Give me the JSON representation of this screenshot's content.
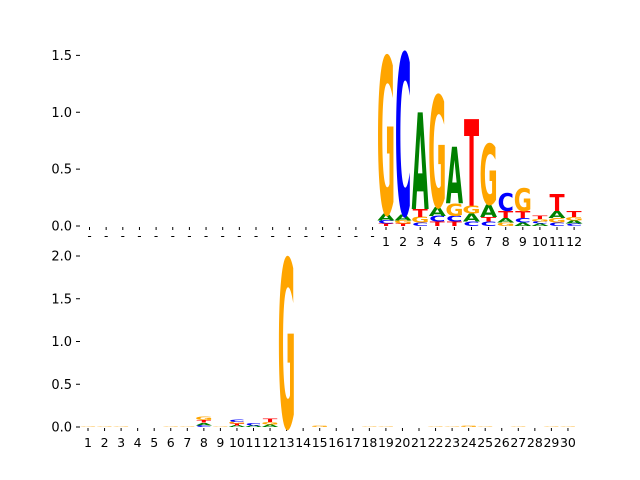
{
  "chart_data": [
    {
      "type": "sequence-logo",
      "ylim": [
        0,
        1.6
      ],
      "yticks": [
        "0.0",
        "0.5",
        "1.0",
        "1.5"
      ],
      "ytick_values": [
        0,
        0.5,
        1.0,
        1.5
      ],
      "num_blank_positions": 18,
      "blank_label": "-",
      "position_labels": [
        "1",
        "2",
        "3",
        "4",
        "5",
        "6",
        "7",
        "8",
        "9",
        "10",
        "11",
        "12"
      ],
      "colors": {
        "A": "#008000",
        "C": "#0000ff",
        "G": "#ffa500",
        "T": "#ff0000"
      },
      "positions": [
        {
          "label": "1",
          "letters": [
            {
              "base": "T",
              "height": 0.02
            },
            {
              "base": "C",
              "height": 0.03
            },
            {
              "base": "A",
              "height": 0.06
            },
            {
              "base": "G",
              "height": 1.38
            }
          ]
        },
        {
          "label": "2",
          "letters": [
            {
              "base": "T",
              "height": 0.02
            },
            {
              "base": "G",
              "height": 0.03
            },
            {
              "base": "A",
              "height": 0.05
            },
            {
              "base": "C",
              "height": 1.42
            }
          ]
        },
        {
          "label": "3",
          "letters": [
            {
              "base": "C",
              "height": 0.03
            },
            {
              "base": "G",
              "height": 0.05
            },
            {
              "base": "T",
              "height": 0.07
            },
            {
              "base": "A",
              "height": 0.85
            }
          ]
        },
        {
          "label": "4",
          "letters": [
            {
              "base": "T",
              "height": 0.04
            },
            {
              "base": "C",
              "height": 0.05
            },
            {
              "base": "A",
              "height": 0.08
            },
            {
              "base": "G",
              "height": 0.98
            }
          ]
        },
        {
          "label": "5",
          "letters": [
            {
              "base": "T",
              "height": 0.04
            },
            {
              "base": "C",
              "height": 0.05
            },
            {
              "base": "G",
              "height": 0.11
            },
            {
              "base": "A",
              "height": 0.5
            }
          ]
        },
        {
          "label": "6",
          "letters": [
            {
              "base": "C",
              "height": 0.04
            },
            {
              "base": "A",
              "height": 0.07
            },
            {
              "base": "G",
              "height": 0.07
            },
            {
              "base": "T",
              "height": 0.76
            }
          ]
        },
        {
          "label": "7",
          "letters": [
            {
              "base": "C",
              "height": 0.04
            },
            {
              "base": "T",
              "height": 0.04
            },
            {
              "base": "A",
              "height": 0.11
            },
            {
              "base": "G",
              "height": 0.53
            }
          ]
        },
        {
          "label": "8",
          "letters": [
            {
              "base": "G",
              "height": 0.03
            },
            {
              "base": "A",
              "height": 0.04
            },
            {
              "base": "T",
              "height": 0.06
            },
            {
              "base": "C",
              "height": 0.16
            }
          ]
        },
        {
          "label": "9",
          "letters": [
            {
              "base": "A",
              "height": 0.03
            },
            {
              "base": "C",
              "height": 0.04
            },
            {
              "base": "T",
              "height": 0.06
            },
            {
              "base": "G",
              "height": 0.2
            }
          ]
        },
        {
          "label": "10",
          "letters": [
            {
              "base": "A",
              "height": 0.02
            },
            {
              "base": "C",
              "height": 0.02
            },
            {
              "base": "G",
              "height": 0.02
            },
            {
              "base": "T",
              "height": 0.03
            }
          ]
        },
        {
          "label": "11",
          "letters": [
            {
              "base": "C",
              "height": 0.03
            },
            {
              "base": "G",
              "height": 0.04
            },
            {
              "base": "A",
              "height": 0.06
            },
            {
              "base": "T",
              "height": 0.15
            }
          ]
        },
        {
          "label": "12",
          "letters": [
            {
              "base": "C",
              "height": 0.02
            },
            {
              "base": "A",
              "height": 0.03
            },
            {
              "base": "G",
              "height": 0.03
            },
            {
              "base": "T",
              "height": 0.05
            }
          ]
        }
      ]
    },
    {
      "type": "sequence-logo",
      "ylim": [
        0,
        2.0
      ],
      "yticks": [
        "0.0",
        "0.5",
        "1.0",
        "1.5",
        "2.0"
      ],
      "ytick_values": [
        0,
        0.5,
        1.0,
        1.5,
        2.0
      ],
      "position_labels": [
        "1",
        "2",
        "3",
        "4",
        "5",
        "6",
        "7",
        "8",
        "9",
        "10",
        "11",
        "12",
        "13",
        "14",
        "15",
        "16",
        "17",
        "18",
        "19",
        "20",
        "21",
        "22",
        "23",
        "24",
        "25",
        "26",
        "27",
        "28",
        "29",
        "30"
      ],
      "colors": {
        "A": "#008000",
        "C": "#0000ff",
        "G": "#ffa500",
        "T": "#ff0000"
      },
      "positions": [
        {
          "label": "1",
          "letters": [
            {
              "base": "G",
              "height": 0.01
            }
          ]
        },
        {
          "label": "2",
          "letters": [
            {
              "base": "G",
              "height": 0.01
            }
          ]
        },
        {
          "label": "3",
          "letters": [
            {
              "base": "G",
              "height": 0.005
            }
          ]
        },
        {
          "label": "4",
          "letters": []
        },
        {
          "label": "5",
          "letters": []
        },
        {
          "label": "6",
          "letters": [
            {
              "base": "G",
              "height": 0.01
            }
          ]
        },
        {
          "label": "7",
          "letters": [
            {
              "base": "G",
              "height": 0.01
            }
          ]
        },
        {
          "label": "8",
          "letters": [
            {
              "base": "C",
              "height": 0.02
            },
            {
              "base": "A",
              "height": 0.03
            },
            {
              "base": "T",
              "height": 0.03
            },
            {
              "base": "G",
              "height": 0.04
            }
          ]
        },
        {
          "label": "9",
          "letters": [
            {
              "base": "G",
              "height": 0.01
            }
          ]
        },
        {
          "label": "10",
          "letters": [
            {
              "base": "A",
              "height": 0.02
            },
            {
              "base": "T",
              "height": 0.02
            },
            {
              "base": "G",
              "height": 0.02
            },
            {
              "base": "C",
              "height": 0.03
            }
          ]
        },
        {
          "label": "11",
          "letters": [
            {
              "base": "A",
              "height": 0.02
            },
            {
              "base": "C",
              "height": 0.03
            }
          ]
        },
        {
          "label": "12",
          "letters": [
            {
              "base": "A",
              "height": 0.03
            },
            {
              "base": "G",
              "height": 0.03
            },
            {
              "base": "T",
              "height": 0.04
            }
          ]
        },
        {
          "label": "13",
          "letters": [
            {
              "base": "G",
              "height": 1.97
            }
          ]
        },
        {
          "label": "14",
          "letters": []
        },
        {
          "label": "15",
          "letters": [
            {
              "base": "G",
              "height": 0.015
            }
          ]
        },
        {
          "label": "16",
          "letters": []
        },
        {
          "label": "17",
          "letters": []
        },
        {
          "label": "18",
          "letters": [
            {
              "base": "G",
              "height": 0.01
            }
          ]
        },
        {
          "label": "19",
          "letters": [
            {
              "base": "G",
              "height": 0.01
            }
          ]
        },
        {
          "label": "20",
          "letters": []
        },
        {
          "label": "21",
          "letters": []
        },
        {
          "label": "22",
          "letters": [
            {
              "base": "G",
              "height": 0.01
            }
          ]
        },
        {
          "label": "23",
          "letters": [
            {
              "base": "G",
              "height": 0.01
            }
          ]
        },
        {
          "label": "24",
          "letters": [
            {
              "base": "G",
              "height": 0.015
            }
          ]
        },
        {
          "label": "25",
          "letters": [
            {
              "base": "G",
              "height": 0.01
            }
          ]
        },
        {
          "label": "26",
          "letters": []
        },
        {
          "label": "27",
          "letters": [
            {
              "base": "G",
              "height": 0.01
            }
          ]
        },
        {
          "label": "28",
          "letters": []
        },
        {
          "label": "29",
          "letters": [
            {
              "base": "G",
              "height": 0.01
            }
          ]
        },
        {
          "label": "30",
          "letters": [
            {
              "base": "G",
              "height": 0.01
            }
          ]
        }
      ]
    }
  ]
}
